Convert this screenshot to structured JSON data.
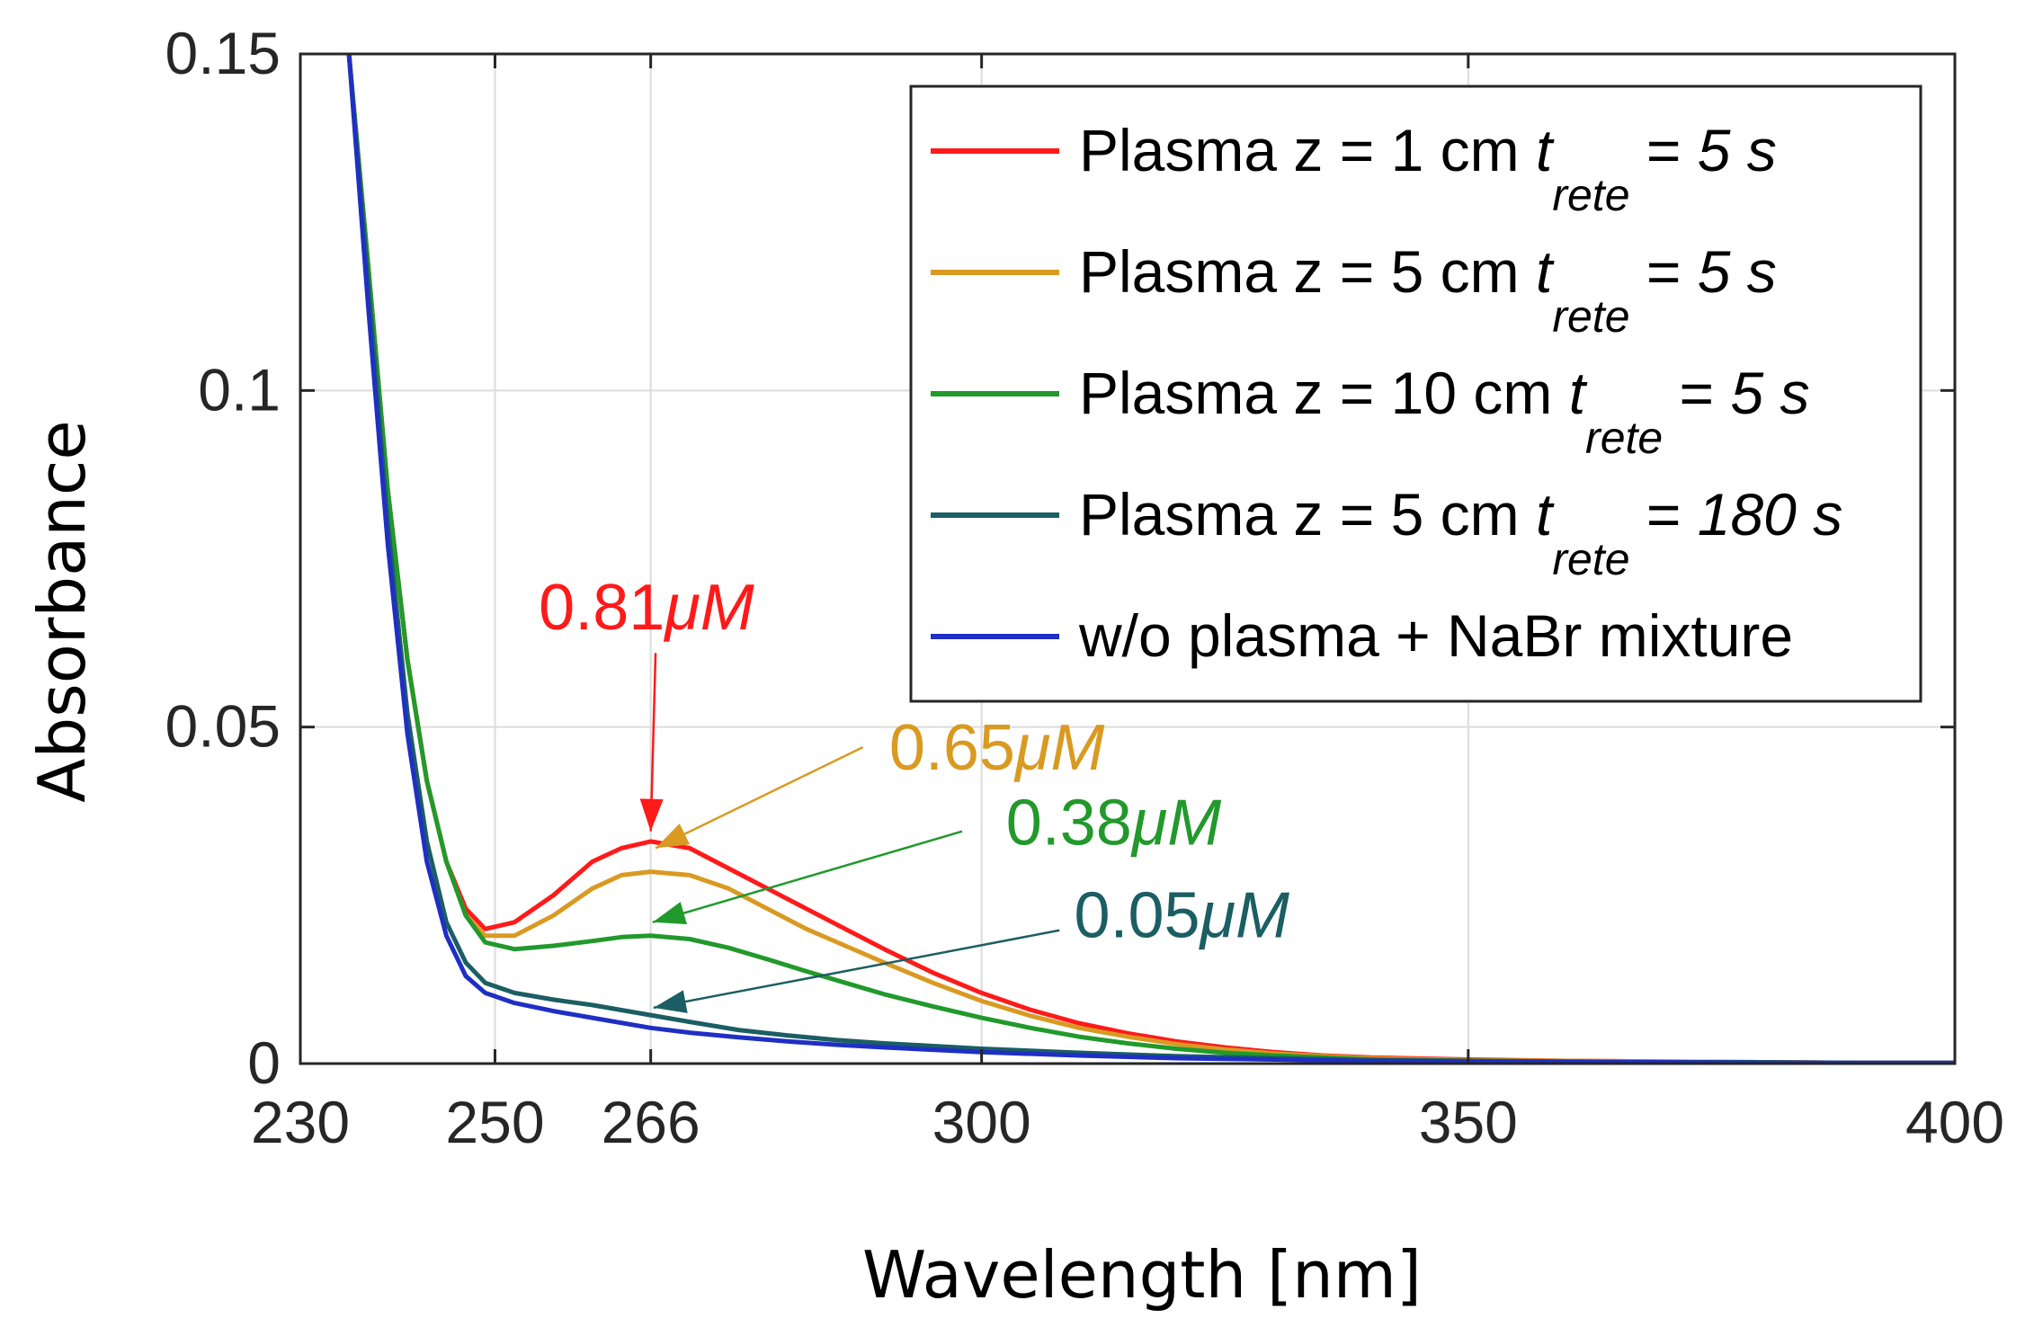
{
  "chart_data": {
    "type": "line",
    "title": "",
    "xlabel": "Wavelength [nm]",
    "ylabel": "Absorbance",
    "xlim": [
      230,
      400
    ],
    "ylim": [
      0,
      0.15
    ],
    "xticks": [
      230,
      250,
      266,
      300,
      350,
      400
    ],
    "xtick_labels": [
      "230",
      "250",
      "266",
      "300",
      "350",
      "400"
    ],
    "yticks": [
      0,
      0.05,
      0.1,
      0.15
    ],
    "ytick_labels": [
      "0",
      "0.05",
      "0.1",
      "0.15"
    ],
    "grid": true,
    "legend_position": "top-right",
    "series": [
      {
        "key": "z1",
        "name": "Plasma z =  1 cm t_rete = 5 s",
        "legend_main": "Plasma z =  1 cm ",
        "legend_t": "t",
        "legend_sub": "rete",
        "legend_eq": " = ",
        "legend_val": "5 s",
        "color": "#ff1a1a",
        "x": [
          235,
          237,
          239,
          241,
          243,
          245,
          247,
          249,
          252,
          256,
          260,
          263,
          266,
          270,
          274,
          278,
          282,
          286,
          290,
          295,
          300,
          305,
          310,
          315,
          320,
          325,
          330,
          335,
          340,
          350,
          360,
          370,
          380,
          390,
          400
        ],
        "y": [
          0.15,
          0.118,
          0.085,
          0.06,
          0.042,
          0.03,
          0.023,
          0.02,
          0.021,
          0.025,
          0.03,
          0.032,
          0.033,
          0.032,
          0.029,
          0.026,
          0.023,
          0.02,
          0.017,
          0.0135,
          0.0105,
          0.008,
          0.006,
          0.0045,
          0.0033,
          0.0024,
          0.0017,
          0.0012,
          0.0009,
          0.0006,
          0.0004,
          0.0003,
          0.0002,
          0.0001,
          0.0001
        ]
      },
      {
        "key": "z5",
        "name": "Plasma z =  5 cm t_rete = 5 s",
        "legend_main": "Plasma z =  5 cm ",
        "legend_t": "t",
        "legend_sub": "rete",
        "legend_eq": " = ",
        "legend_val": "5 s",
        "color": "#d99a22",
        "x": [
          235,
          237,
          239,
          241,
          243,
          245,
          247,
          249,
          252,
          256,
          260,
          263,
          266,
          270,
          274,
          278,
          282,
          286,
          290,
          295,
          300,
          305,
          310,
          315,
          320,
          325,
          330,
          335,
          340,
          350,
          360,
          370,
          380,
          390,
          400
        ],
        "y": [
          0.15,
          0.118,
          0.085,
          0.06,
          0.042,
          0.03,
          0.022,
          0.019,
          0.019,
          0.022,
          0.026,
          0.028,
          0.0285,
          0.028,
          0.026,
          0.023,
          0.02,
          0.0175,
          0.015,
          0.012,
          0.0093,
          0.0071,
          0.0053,
          0.004,
          0.0029,
          0.0021,
          0.0015,
          0.0011,
          0.0008,
          0.0005,
          0.0004,
          0.0003,
          0.0002,
          0.0001,
          0.0001
        ]
      },
      {
        "key": "z10",
        "name": "Plasma z = 10 cm t_rete = 5 s",
        "legend_main": "Plasma z = 10 cm ",
        "legend_t": "t",
        "legend_sub": "rete",
        "legend_eq": " = ",
        "legend_val": "5 s",
        "color": "#22992b",
        "x": [
          235,
          237,
          239,
          241,
          243,
          245,
          247,
          249,
          252,
          256,
          260,
          263,
          266,
          270,
          274,
          278,
          282,
          286,
          290,
          295,
          300,
          305,
          310,
          315,
          320,
          325,
          330,
          335,
          340,
          350,
          360,
          370,
          380,
          390,
          400
        ],
        "y": [
          0.15,
          0.118,
          0.085,
          0.06,
          0.042,
          0.03,
          0.022,
          0.018,
          0.017,
          0.0175,
          0.0182,
          0.0188,
          0.019,
          0.0185,
          0.0172,
          0.0155,
          0.0137,
          0.012,
          0.0103,
          0.0085,
          0.0068,
          0.0053,
          0.004,
          0.003,
          0.0022,
          0.0016,
          0.0012,
          0.0009,
          0.0006,
          0.0004,
          0.0003,
          0.0002,
          0.0001,
          0.0001,
          0.0001
        ]
      },
      {
        "key": "z5_180",
        "name": "Plasma z =  5 cm t_rete = 180 s",
        "legend_main": "Plasma z =  5 cm ",
        "legend_t": "t",
        "legend_sub": "rete",
        "legend_eq": " = ",
        "legend_val": "180 s",
        "color": "#1b5e63",
        "x": [
          235,
          237,
          239,
          241,
          243,
          245,
          247,
          249,
          252,
          256,
          260,
          266,
          270,
          275,
          280,
          285,
          290,
          300,
          310,
          320,
          330,
          340,
          350,
          360,
          370,
          380,
          390,
          400
        ],
        "y": [
          0.15,
          0.115,
          0.08,
          0.052,
          0.033,
          0.021,
          0.015,
          0.012,
          0.0105,
          0.0095,
          0.0087,
          0.0072,
          0.0062,
          0.005,
          0.0042,
          0.0035,
          0.003,
          0.0022,
          0.0016,
          0.0011,
          0.0008,
          0.0005,
          0.0004,
          0.0003,
          0.0002,
          0.0002,
          0.0001,
          0.0001
        ]
      },
      {
        "key": "noplasma",
        "name": "w/o plasma + NaBr mixture",
        "legend_main": "w/o plasma + NaBr mixture",
        "legend_t": "",
        "legend_sub": "",
        "legend_eq": "",
        "legend_val": "",
        "color": "#1f2fc4",
        "x": [
          235,
          237,
          239,
          241,
          243,
          245,
          247,
          249,
          252,
          256,
          260,
          266,
          270,
          275,
          280,
          285,
          290,
          300,
          310,
          320,
          330,
          340,
          350,
          360,
          370,
          380,
          390,
          400
        ],
        "y": [
          0.15,
          0.112,
          0.077,
          0.049,
          0.03,
          0.019,
          0.013,
          0.0105,
          0.009,
          0.0078,
          0.0068,
          0.0053,
          0.0046,
          0.0039,
          0.0033,
          0.0028,
          0.0024,
          0.0017,
          0.0012,
          0.0008,
          0.0006,
          0.0004,
          0.0003,
          0.0002,
          0.0002,
          0.0001,
          0.0001,
          0.0001
        ]
      }
    ],
    "annotations": [
      {
        "key": "a1",
        "label": "0.81",
        "unit": "μM",
        "color": "#ff1a1a",
        "text_at": [
          254.5,
          0.0645
        ],
        "arrow_from": [
          266.5,
          0.061
        ],
        "arrow_to": [
          266,
          0.0345
        ]
      },
      {
        "key": "a2",
        "label": "0.65",
        "unit": "μM",
        "color": "#d99a22",
        "text_at": [
          290.5,
          0.0437
        ],
        "arrow_from": [
          287.8,
          0.047
        ],
        "arrow_to": [
          266.5,
          0.032
        ]
      },
      {
        "key": "a3",
        "label": "0.38",
        "unit": "μM",
        "color": "#22992b",
        "text_at": [
          302.5,
          0.0325
        ],
        "arrow_from": [
          298,
          0.0345
        ],
        "arrow_to": [
          266.2,
          0.021
        ]
      },
      {
        "key": "a4",
        "label": "0.05",
        "unit": "μM",
        "color": "#1b5e63",
        "text_at": [
          309.5,
          0.0188
        ],
        "arrow_from": [
          308,
          0.0198
        ],
        "arrow_to": [
          266.3,
          0.0083
        ]
      }
    ]
  }
}
